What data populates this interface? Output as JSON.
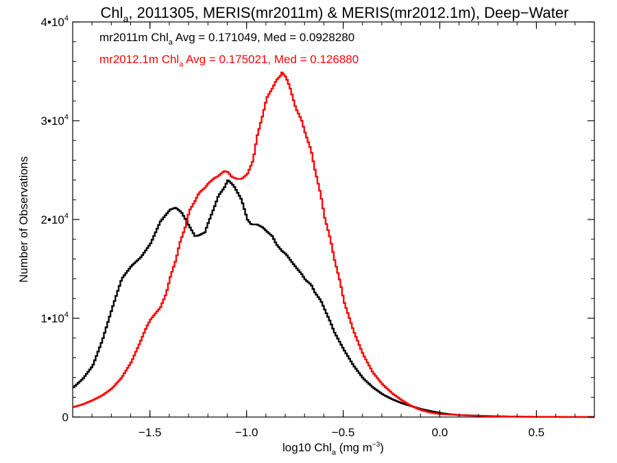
{
  "chart_data": {
    "type": "line",
    "title": {
      "pre": "Chl",
      "sub": "a",
      "post": ", 2011305, MERIS(mr2011m) & MERIS(mr2012.1m), Deep−Water"
    },
    "xlabel": {
      "pre": "log10 Chl",
      "sub": "a",
      "post": " (mg m",
      "sup": "−3",
      "end": ")"
    },
    "ylabel": "Number of Observations",
    "xlim": [
      -1.9,
      0.8
    ],
    "ylim": [
      0,
      40000
    ],
    "x_ticks": [
      {
        "value": -1.5,
        "label": "−1.5"
      },
      {
        "value": -1.0,
        "label": "−1.0"
      },
      {
        "value": -0.5,
        "label": "−0.5"
      },
      {
        "value": 0.0,
        "label": "0.0"
      },
      {
        "value": 0.5,
        "label": "0.5"
      }
    ],
    "y_ticks": [
      {
        "value": 0,
        "base": "0",
        "exp": ""
      },
      {
        "value": 10000,
        "base": "1•10",
        "exp": "4"
      },
      {
        "value": 20000,
        "base": "2•10",
        "exp": "4"
      },
      {
        "value": 30000,
        "base": "3•10",
        "exp": "4"
      },
      {
        "value": 40000,
        "base": "4•10",
        "exp": "4"
      }
    ],
    "legend_placement": "top-left",
    "series": [
      {
        "name": "mr2011m",
        "color": "#000000",
        "legend": {
          "pre": "mr2011m Chl",
          "sub": "a",
          "post": " Avg = 0.171049, Med = 0.0928280"
        },
        "x": [
          -1.9,
          -1.85,
          -1.8,
          -1.75,
          -1.7,
          -1.65,
          -1.6,
          -1.55,
          -1.5,
          -1.45,
          -1.4,
          -1.37,
          -1.34,
          -1.3,
          -1.27,
          -1.25,
          -1.22,
          -1.2,
          -1.17,
          -1.15,
          -1.12,
          -1.1,
          -1.07,
          -1.03,
          -1.0,
          -0.98,
          -0.95,
          -0.92,
          -0.9,
          -0.87,
          -0.85,
          -0.82,
          -0.8,
          -0.77,
          -0.75,
          -0.72,
          -0.7,
          -0.67,
          -0.65,
          -0.62,
          -0.6,
          -0.57,
          -0.55,
          -0.5,
          -0.45,
          -0.4,
          -0.35,
          -0.3,
          -0.25,
          -0.2,
          -0.15,
          -0.1,
          -0.05,
          0.0,
          0.05,
          0.1,
          0.2,
          0.3,
          0.4,
          0.5,
          0.6,
          0.7,
          0.8
        ],
        "values": [
          3000,
          3900,
          5200,
          7800,
          11000,
          14000,
          15300,
          16200,
          17600,
          19800,
          21000,
          21200,
          20700,
          19300,
          18300,
          18400,
          18700,
          19800,
          21300,
          22400,
          23200,
          24000,
          23400,
          22000,
          20000,
          19500,
          19500,
          19200,
          18800,
          18300,
          17500,
          16800,
          16500,
          15700,
          15200,
          14500,
          13900,
          13400,
          12600,
          11800,
          10900,
          9600,
          8600,
          6800,
          5200,
          3900,
          3000,
          2300,
          1800,
          1400,
          1100,
          800,
          600,
          400,
          280,
          200,
          130,
          80,
          40,
          20,
          10,
          5,
          0
        ]
      },
      {
        "name": "mr2012.1m",
        "color": "#ff0000",
        "legend": {
          "pre": "mr2012.1m Chl",
          "sub": "a",
          "post": " Avg = 0.175021, Med = 0.126880"
        },
        "x": [
          -1.9,
          -1.85,
          -1.8,
          -1.75,
          -1.7,
          -1.65,
          -1.6,
          -1.55,
          -1.52,
          -1.5,
          -1.45,
          -1.42,
          -1.4,
          -1.37,
          -1.35,
          -1.32,
          -1.3,
          -1.27,
          -1.25,
          -1.22,
          -1.2,
          -1.17,
          -1.15,
          -1.12,
          -1.1,
          -1.08,
          -1.05,
          -1.03,
          -1.0,
          -0.97,
          -0.95,
          -0.92,
          -0.9,
          -0.87,
          -0.85,
          -0.83,
          -0.82,
          -0.8,
          -0.78,
          -0.75,
          -0.72,
          -0.7,
          -0.67,
          -0.65,
          -0.62,
          -0.6,
          -0.57,
          -0.55,
          -0.52,
          -0.5,
          -0.45,
          -0.4,
          -0.35,
          -0.3,
          -0.25,
          -0.2,
          -0.15,
          -0.1,
          -0.05,
          0.0,
          0.1,
          0.2,
          0.3,
          0.4,
          0.5,
          0.6,
          0.7,
          0.8
        ],
        "values": [
          1000,
          1300,
          1700,
          2200,
          2900,
          4000,
          5600,
          7800,
          9200,
          9900,
          11100,
          12500,
          14100,
          15900,
          17600,
          19300,
          20900,
          21900,
          22700,
          23200,
          23700,
          24200,
          24400,
          24900,
          24800,
          24300,
          24100,
          24100,
          24600,
          26000,
          28400,
          30600,
          32300,
          33300,
          34100,
          34500,
          34900,
          34400,
          33400,
          31300,
          30100,
          28700,
          27000,
          25000,
          22500,
          20200,
          18000,
          16000,
          13700,
          11700,
          8700,
          6300,
          4500,
          3300,
          2400,
          1700,
          1100,
          700,
          450,
          300,
          200,
          120,
          70,
          40,
          20,
          10,
          5,
          0
        ]
      }
    ]
  }
}
